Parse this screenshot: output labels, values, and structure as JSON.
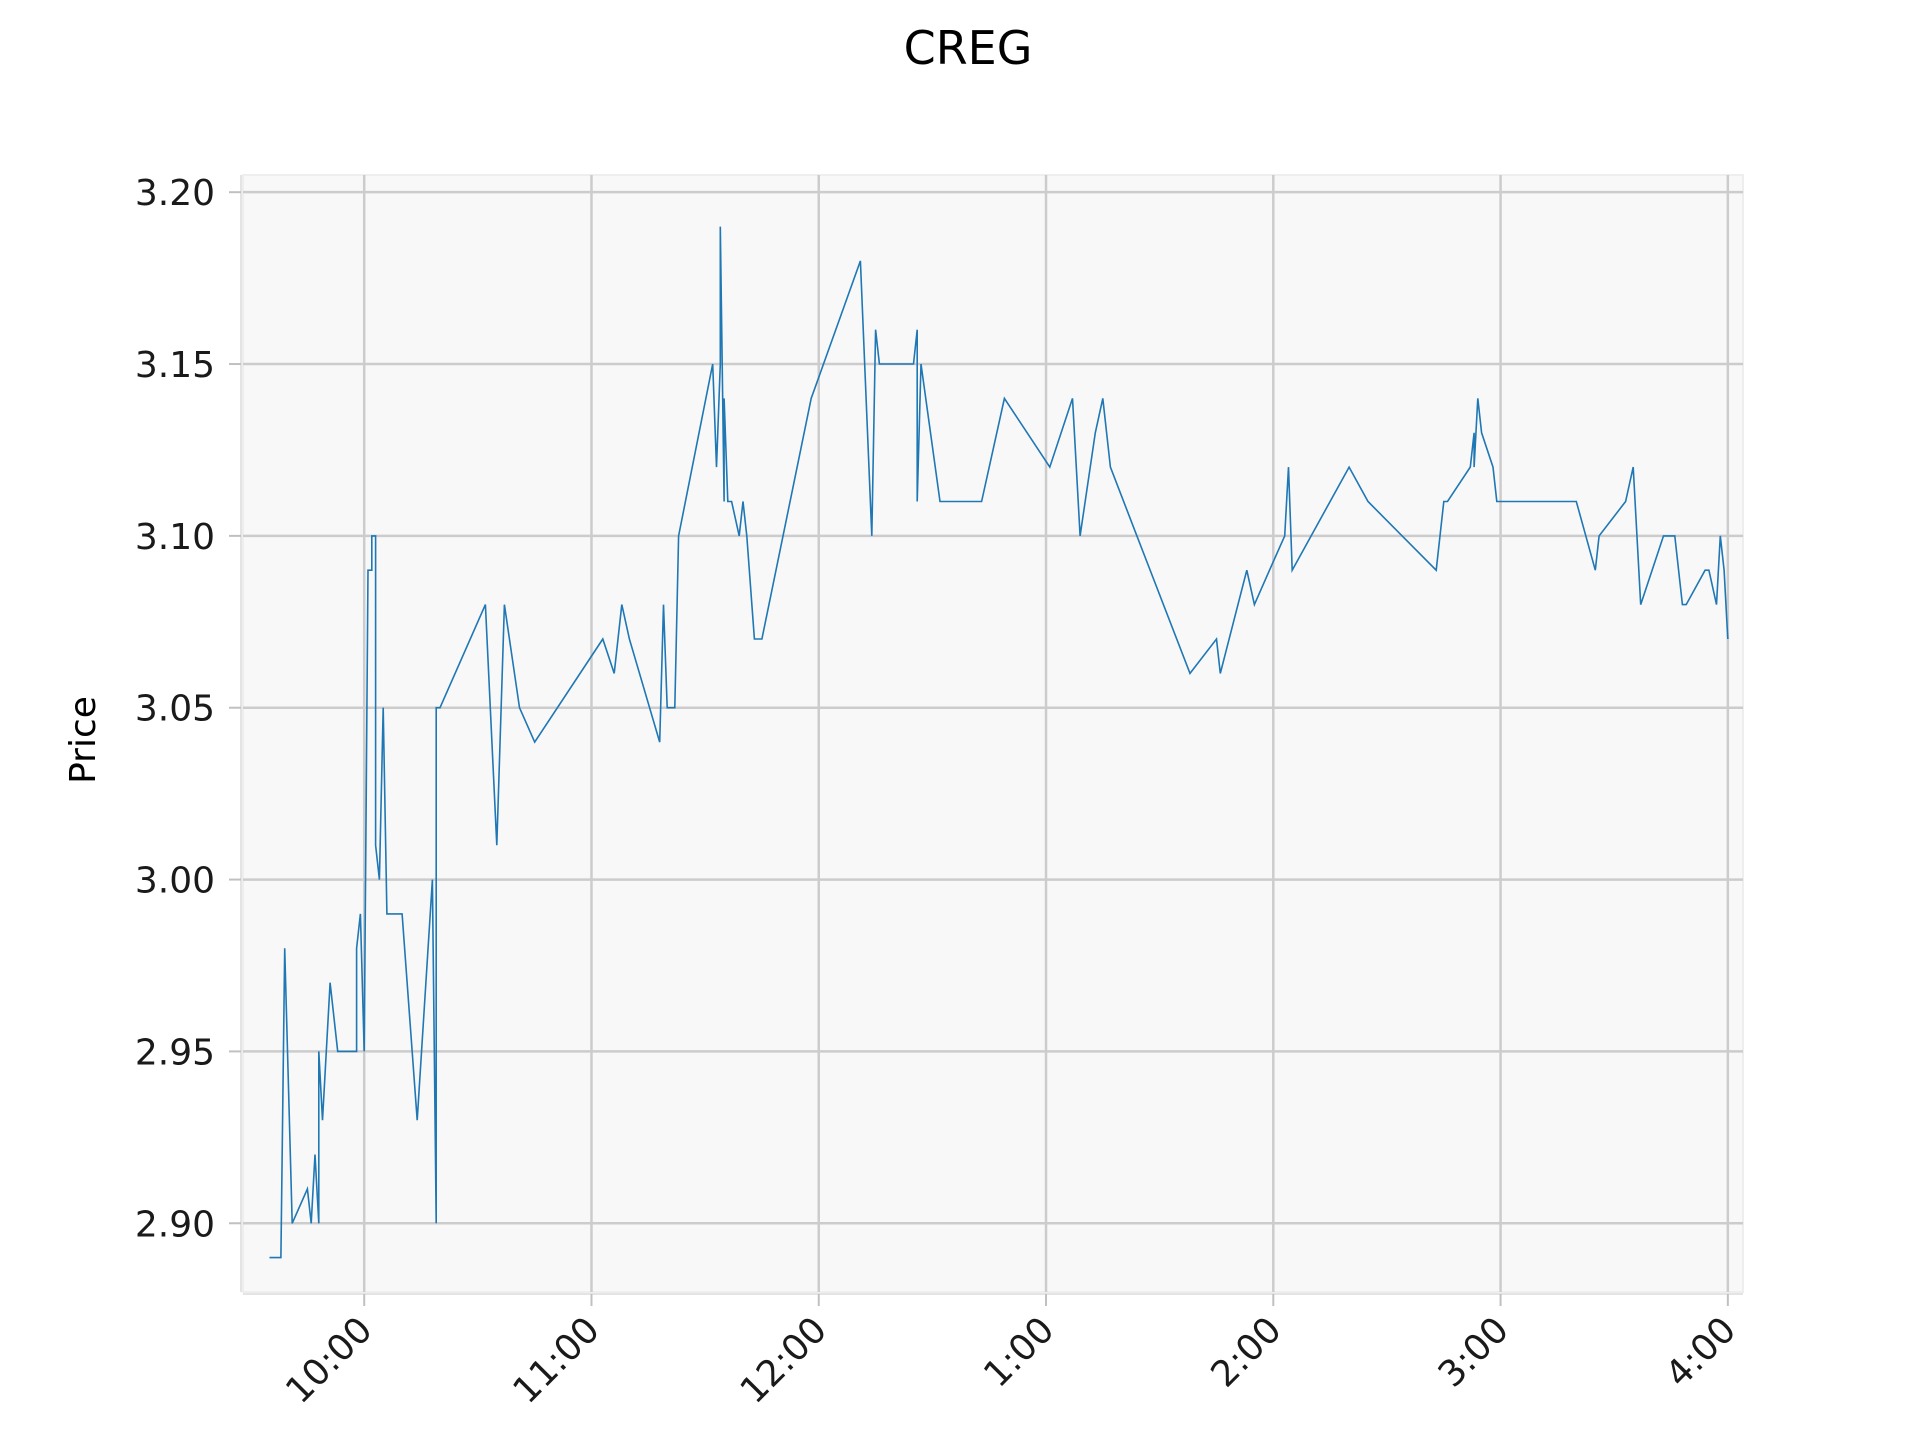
{
  "chart_data": {
    "type": "line",
    "title": "CREG",
    "xlabel": "",
    "ylabel": "Price",
    "ylim": [
      2.88,
      3.205
    ],
    "xlim": [
      "09:28",
      "16:04"
    ],
    "grid": true,
    "legend": "none",
    "x_tick_values": [
      "10:00",
      "11:00",
      "12:00",
      "13:00",
      "14:00",
      "15:00",
      "16:00"
    ],
    "x_tick_labels": [
      "10:00",
      "11:00",
      "12:00",
      "1:00",
      "2:00",
      "3:00",
      "4:00"
    ],
    "y_tick_values": [
      2.9,
      2.95,
      3.0,
      3.05,
      3.1,
      3.15,
      3.2
    ],
    "y_tick_labels": [
      "2.90",
      "2.95",
      "3.00",
      "3.05",
      "3.10",
      "3.15",
      "3.20"
    ],
    "series": [
      {
        "color": "#1f77b4",
        "x": [
          "09:35",
          "09:38",
          "09:39",
          "09:41",
          "09:45",
          "09:46",
          "09:47",
          "09:48",
          "09:48",
          "09:49",
          "09:50",
          "09:51",
          "09:52",
          "09:53",
          "09:55",
          "09:58",
          "09:58",
          "09:59",
          "10:00",
          "10:01",
          "10:02",
          "10:02",
          "10:03",
          "10:03",
          "10:04",
          "10:05",
          "10:06",
          "10:10",
          "10:14",
          "10:18",
          "10:19",
          "10:19",
          "10:20",
          "10:32",
          "10:35",
          "10:37",
          "10:41",
          "10:45",
          "11:03",
          "11:06",
          "11:08",
          "11:10",
          "11:18",
          "11:19",
          "11:20",
          "11:22",
          "11:23",
          "11:32",
          "11:33",
          "11:34",
          "11:34",
          "11:35",
          "11:35",
          "11:36",
          "11:36",
          "11:37",
          "11:39",
          "11:40",
          "11:41",
          "11:43",
          "11:45",
          "11:58",
          "12:11",
          "12:14",
          "12:15",
          "12:16",
          "12:25",
          "12:26",
          "12:26",
          "12:27",
          "12:32",
          "12:43",
          "12:49",
          "13:01",
          "13:07",
          "13:08",
          "13:09",
          "13:13",
          "13:15",
          "13:17",
          "13:24",
          "13:38",
          "13:45",
          "13:46",
          "13:53",
          "13:55",
          "13:59",
          "14:03",
          "14:04",
          "14:05",
          "14:20",
          "14:25",
          "14:43",
          "14:45",
          "14:46",
          "14:52",
          "14:53",
          "14:53",
          "14:54",
          "14:55",
          "14:55",
          "14:58",
          "14:59",
          "15:20",
          "15:25",
          "15:26",
          "15:33",
          "15:35",
          "15:37",
          "15:43",
          "15:46",
          "15:48",
          "15:49",
          "15:54",
          "15:55",
          "15:57",
          "15:58",
          "15:59",
          "16:00"
        ],
        "y": [
          2.89,
          2.89,
          2.98,
          2.9,
          2.91,
          2.9,
          2.92,
          2.9,
          2.95,
          2.93,
          2.95,
          2.97,
          2.96,
          2.95,
          2.95,
          2.95,
          2.98,
          2.99,
          2.95,
          3.09,
          3.09,
          3.1,
          3.1,
          3.01,
          3.0,
          3.05,
          2.99,
          2.99,
          2.93,
          3.0,
          2.9,
          3.05,
          3.05,
          3.08,
          3.01,
          3.08,
          3.05,
          3.04,
          3.07,
          3.06,
          3.08,
          3.07,
          3.04,
          3.08,
          3.05,
          3.05,
          3.1,
          3.15,
          3.12,
          3.15,
          3.19,
          3.11,
          3.14,
          3.11,
          3.11,
          3.11,
          3.1,
          3.11,
          3.1,
          3.07,
          3.07,
          3.14,
          3.18,
          3.1,
          3.16,
          3.15,
          3.15,
          3.16,
          3.11,
          3.15,
          3.11,
          3.11,
          3.14,
          3.12,
          3.14,
          3.12,
          3.1,
          3.13,
          3.14,
          3.12,
          3.1,
          3.06,
          3.07,
          3.06,
          3.09,
          3.08,
          3.09,
          3.1,
          3.12,
          3.09,
          3.12,
          3.11,
          3.09,
          3.11,
          3.11,
          3.12,
          3.13,
          3.12,
          3.14,
          3.13,
          3.13,
          3.12,
          3.11,
          3.11,
          3.09,
          3.1,
          3.11,
          3.12,
          3.08,
          3.1,
          3.1,
          3.08,
          3.08,
          3.09,
          3.09,
          3.08,
          3.1,
          3.09,
          3.07
        ]
      }
    ]
  }
}
